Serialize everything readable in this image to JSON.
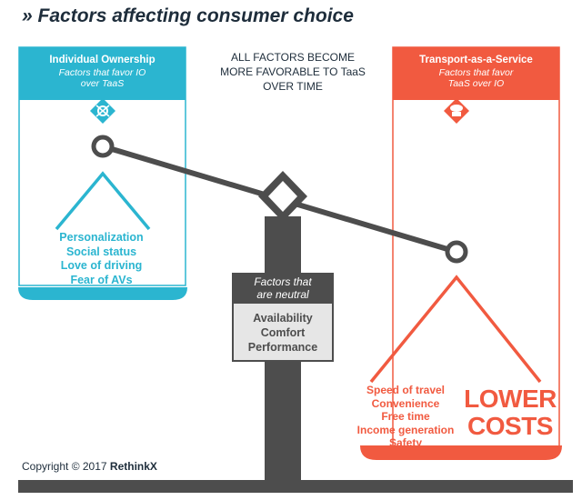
{
  "title": "» Factors affecting consumer choice",
  "left_panel": {
    "heading": "Individual Ownership",
    "subheading": "Factors that favor IO over TaaS",
    "icon": "car-gear-icon",
    "factors": [
      "Personalization",
      "Social status",
      "Love of driving",
      "Fear of AVs"
    ]
  },
  "center": {
    "text": "ALL FACTORS BECOME MORE FAVORABLE TO TaaS OVER TIME"
  },
  "right_panel": {
    "heading": "Transport-as-a-Service",
    "subheading": "Factors that favor TaaS over IO",
    "icon": "cloud-car-icon",
    "factors": [
      "Speed of travel",
      "Convenience",
      "Free time",
      "Income generation",
      "Safety"
    ],
    "highlight": "LOWER COSTS"
  },
  "neutral": {
    "heading": "Factors that are neutral",
    "factors": [
      "Availability",
      "Comfort",
      "Performance"
    ]
  },
  "copyright": {
    "text": "Copyright © 2017",
    "brand": "RethinkX"
  },
  "colors": {
    "io": "#2bb5d0",
    "taas": "#f15a40",
    "scale": "#4d4d4d",
    "text": "#1e2d3b"
  }
}
